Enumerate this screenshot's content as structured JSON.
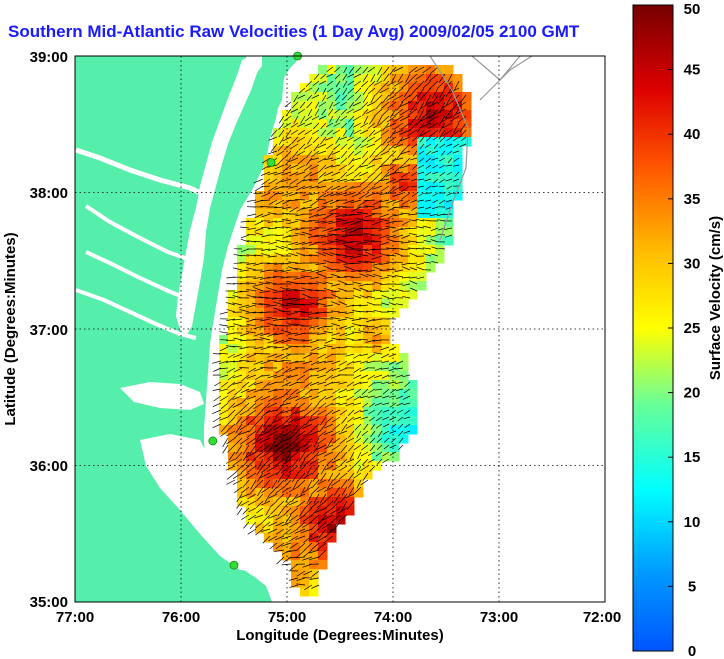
{
  "title": "Southern Mid-Atlantic Raw Velocities (1 Day Avg) 2009/02/05 2100 GMT",
  "x_axis": {
    "label": "Longitude (Degrees:Minutes)",
    "ticks": [
      "77:00",
      "76:00",
      "75:00",
      "74:00",
      "73:00",
      "72:00"
    ]
  },
  "y_axis": {
    "label": "Latitude (Degrees:Minutes)",
    "ticks": [
      "39:00",
      "38:00",
      "37:00",
      "36:00",
      "35:00"
    ]
  },
  "colorbar": {
    "label": "Surface Velocity (cm/s)",
    "ticks": [
      "50",
      "45",
      "40",
      "35",
      "30",
      "25",
      "20",
      "15",
      "10",
      "5",
      "0"
    ],
    "range": [
      0,
      50
    ]
  },
  "colors": {
    "land": "#55eeaa",
    "water": "#ffffff",
    "title": "#1a1aff",
    "station": "#33dd33",
    "isobath": "#999999"
  },
  "map_extent": {
    "lon": [
      -77,
      -72
    ],
    "lat": [
      35,
      39
    ]
  },
  "stations": [
    {
      "lon": -74.9,
      "lat": 39.0
    },
    {
      "lon": -75.15,
      "lat": 38.22
    },
    {
      "lon": -75.7,
      "lat": 36.18
    },
    {
      "lon": -75.5,
      "lat": 35.27
    }
  ]
}
